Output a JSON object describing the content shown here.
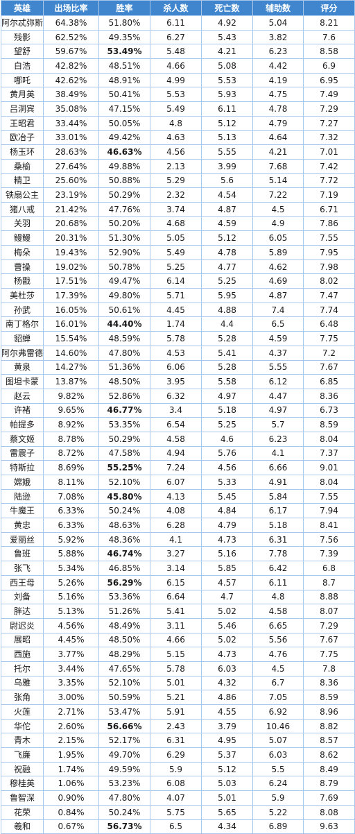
{
  "table": {
    "headers": [
      "英雄",
      "出场比率",
      "胜率",
      "杀人数",
      "死亡数",
      "辅助数",
      "评分"
    ],
    "highlight_colors": {
      "green": "#1fa84f",
      "red": "#e52226",
      "header_bg": "#3f86cf"
    },
    "rows": [
      {
        "cells": [
          "阿尔忒弥斯",
          "64.38%",
          "51.80%",
          "6.11",
          "4.92",
          "5.04",
          "8.21"
        ],
        "hl": ""
      },
      {
        "cells": [
          "残影",
          "62.52%",
          "49.35%",
          "6.27",
          "5.43",
          "3.82",
          "7.6"
        ],
        "hl": ""
      },
      {
        "cells": [
          "望舒",
          "59.67%",
          "53.49%",
          "5.48",
          "4.21",
          "6.23",
          "8.58"
        ],
        "hl": "red"
      },
      {
        "cells": [
          "白浩",
          "42.82%",
          "48.51%",
          "4.66",
          "5.08",
          "4.42",
          "6.9"
        ],
        "hl": ""
      },
      {
        "cells": [
          "哪吒",
          "42.62%",
          "48.91%",
          "4.99",
          "5.53",
          "4.19",
          "6.95"
        ],
        "hl": ""
      },
      {
        "cells": [
          "黄月英",
          "38.49%",
          "50.41%",
          "5.53",
          "5.93",
          "4.75",
          "7.49"
        ],
        "hl": ""
      },
      {
        "cells": [
          "吕洞宾",
          "35.08%",
          "47.15%",
          "5.49",
          "6.11",
          "4.78",
          "7.29"
        ],
        "hl": ""
      },
      {
        "cells": [
          "王昭君",
          "33.44%",
          "50.05%",
          "4.8",
          "5.12",
          "4.79",
          "7.27"
        ],
        "hl": ""
      },
      {
        "cells": [
          "欧冶子",
          "33.01%",
          "49.42%",
          "4.63",
          "5.13",
          "4.64",
          "7.32"
        ],
        "hl": ""
      },
      {
        "cells": [
          "杨玉环",
          "28.63%",
          "46.63%",
          "4.56",
          "5.55",
          "4.21",
          "7.01"
        ],
        "hl": "green"
      },
      {
        "cells": [
          "桑榆",
          "27.64%",
          "49.88%",
          "2.13",
          "3.99",
          "7.68",
          "7.42"
        ],
        "hl": ""
      },
      {
        "cells": [
          "精卫",
          "25.60%",
          "50.88%",
          "5.29",
          "5.6",
          "5.14",
          "7.72"
        ],
        "hl": ""
      },
      {
        "cells": [
          "铁扇公主",
          "23.19%",
          "50.29%",
          "2.32",
          "4.54",
          "7.22",
          "7.19"
        ],
        "hl": ""
      },
      {
        "cells": [
          "猪八戒",
          "21.42%",
          "47.76%",
          "3.74",
          "4.87",
          "4.5",
          "6.71"
        ],
        "hl": ""
      },
      {
        "cells": [
          "关羽",
          "20.68%",
          "50.20%",
          "4.68",
          "4.59",
          "4.9",
          "7.86"
        ],
        "hl": ""
      },
      {
        "cells": [
          "鳗鳗",
          "20.31%",
          "51.30%",
          "5.05",
          "5.12",
          "6.05",
          "7.55"
        ],
        "hl": ""
      },
      {
        "cells": [
          "梅朵",
          "19.43%",
          "52.90%",
          "5.49",
          "4.78",
          "5.89",
          "7.95"
        ],
        "hl": ""
      },
      {
        "cells": [
          "曹操",
          "19.02%",
          "50.78%",
          "5.25",
          "4.77",
          "4.62",
          "7.98"
        ],
        "hl": ""
      },
      {
        "cells": [
          "杨戬",
          "17.51%",
          "49.47%",
          "6.14",
          "5.25",
          "4.69",
          "8.02"
        ],
        "hl": ""
      },
      {
        "cells": [
          "美杜莎",
          "17.39%",
          "49.80%",
          "5.71",
          "5.95",
          "4.87",
          "7.47"
        ],
        "hl": ""
      },
      {
        "cells": [
          "孙武",
          "16.05%",
          "50.61%",
          "4.45",
          "4.88",
          "7.4",
          "7.74"
        ],
        "hl": ""
      },
      {
        "cells": [
          "南丁格尔",
          "16.01%",
          "44.40%",
          "1.74",
          "4.4",
          "6.5",
          "6.48"
        ],
        "hl": "green"
      },
      {
        "cells": [
          "貂蝉",
          "15.54%",
          "48.59%",
          "5.78",
          "5.28",
          "4.59",
          "7.75"
        ],
        "hl": ""
      },
      {
        "cells": [
          "阿尔弗雷德",
          "14.60%",
          "47.80%",
          "4.53",
          "5.41",
          "4.37",
          "7.2"
        ],
        "hl": ""
      },
      {
        "cells": [
          "黄泉",
          "14.27%",
          "51.36%",
          "6.06",
          "5.28",
          "5.55",
          "7.67"
        ],
        "hl": ""
      },
      {
        "cells": [
          "图坦卡蒙",
          "13.87%",
          "48.50%",
          "3.95",
          "5.58",
          "6.12",
          "6.85"
        ],
        "hl": ""
      },
      {
        "cells": [
          "赵云",
          "9.82%",
          "52.86%",
          "6.32",
          "4.97",
          "4.47",
          "8.36"
        ],
        "hl": ""
      },
      {
        "cells": [
          "许褚",
          "9.65%",
          "46.77%",
          "3.4",
          "5.18",
          "4.97",
          "6.73"
        ],
        "hl": "green"
      },
      {
        "cells": [
          "帕提多",
          "8.92%",
          "53.35%",
          "6.54",
          "5.25",
          "5.7",
          "8.59"
        ],
        "hl": ""
      },
      {
        "cells": [
          "蔡文姬",
          "8.78%",
          "50.29%",
          "4.58",
          "4.6",
          "6.23",
          "8.04"
        ],
        "hl": ""
      },
      {
        "cells": [
          "雷震子",
          "8.72%",
          "47.58%",
          "4.94",
          "5.76",
          "4.1",
          "7.37"
        ],
        "hl": ""
      },
      {
        "cells": [
          "特斯拉",
          "8.69%",
          "55.25%",
          "7.24",
          "4.56",
          "6.66",
          "9.01"
        ],
        "hl": "red"
      },
      {
        "cells": [
          "嫦娥",
          "8.11%",
          "52.10%",
          "6.07",
          "5.33",
          "4.91",
          "8.04"
        ],
        "hl": ""
      },
      {
        "cells": [
          "陆逊",
          "7.08%",
          "45.80%",
          "4.13",
          "5.45",
          "5.84",
          "7.55"
        ],
        "hl": "green"
      },
      {
        "cells": [
          "牛魔王",
          "6.33%",
          "50.24%",
          "4.08",
          "4.84",
          "6.17",
          "7.94"
        ],
        "hl": ""
      },
      {
        "cells": [
          "黄忠",
          "6.33%",
          "48.63%",
          "6.28",
          "4.79",
          "5.18",
          "8.41"
        ],
        "hl": ""
      },
      {
        "cells": [
          "爱丽丝",
          "5.92%",
          "48.36%",
          "4.1",
          "4.73",
          "6.31",
          "7.56"
        ],
        "hl": ""
      },
      {
        "cells": [
          "鲁班",
          "5.88%",
          "46.74%",
          "3.27",
          "5.16",
          "7.78",
          "7.39"
        ],
        "hl": "green"
      },
      {
        "cells": [
          "张飞",
          "5.34%",
          "46.85%",
          "3.14",
          "5.85",
          "6.42",
          "6.8"
        ],
        "hl": ""
      },
      {
        "cells": [
          "西王母",
          "5.26%",
          "56.29%",
          "6.15",
          "4.57",
          "6.11",
          "8.7"
        ],
        "hl": "red"
      },
      {
        "cells": [
          "刘备",
          "5.16%",
          "53.36%",
          "6.64",
          "4.7",
          "4.8",
          "8.88"
        ],
        "hl": ""
      },
      {
        "cells": [
          "胖达",
          "5.13%",
          "51.26%",
          "5.41",
          "5.02",
          "4.58",
          "8.07"
        ],
        "hl": ""
      },
      {
        "cells": [
          "尉迟炎",
          "4.56%",
          "48.49%",
          "3.11",
          "5.46",
          "6.65",
          "7.29"
        ],
        "hl": ""
      },
      {
        "cells": [
          "展昭",
          "4.45%",
          "48.50%",
          "4.66",
          "5.02",
          "5.56",
          "7.67"
        ],
        "hl": ""
      },
      {
        "cells": [
          "西施",
          "3.77%",
          "48.29%",
          "5.15",
          "4.73",
          "4.76",
          "7.75"
        ],
        "hl": ""
      },
      {
        "cells": [
          "托尔",
          "3.44%",
          "47.65%",
          "5.78",
          "6.03",
          "4.5",
          "7.8"
        ],
        "hl": ""
      },
      {
        "cells": [
          "乌雅",
          "3.35%",
          "52.10%",
          "5.01",
          "4.32",
          "6.7",
          "8.36"
        ],
        "hl": ""
      },
      {
        "cells": [
          "张角",
          "3.00%",
          "50.59%",
          "5.21",
          "4.86",
          "7.05",
          "8.59"
        ],
        "hl": ""
      },
      {
        "cells": [
          "火莲",
          "2.71%",
          "53.47%",
          "5.91",
          "4.55",
          "6.92",
          "8.96"
        ],
        "hl": ""
      },
      {
        "cells": [
          "华佗",
          "2.60%",
          "56.66%",
          "2.43",
          "3.79",
          "10.46",
          "8.82"
        ],
        "hl": "red"
      },
      {
        "cells": [
          "青木",
          "2.15%",
          "52.17%",
          "6.31",
          "4.95",
          "5.07",
          "8.57"
        ],
        "hl": ""
      },
      {
        "cells": [
          "飞廉",
          "1.95%",
          "49.70%",
          "6.29",
          "5.37",
          "6.03",
          "8.62"
        ],
        "hl": ""
      },
      {
        "cells": [
          "祝融",
          "1.74%",
          "49.59%",
          "5.9",
          "5.12",
          "5.5",
          "8.49"
        ],
        "hl": ""
      },
      {
        "cells": [
          "穆桂英",
          "1.06%",
          "53.23%",
          "6.08",
          "5.03",
          "6.24",
          "8.79"
        ],
        "hl": ""
      },
      {
        "cells": [
          "鲁智深",
          "0.90%",
          "47.80%",
          "4.07",
          "5.01",
          "5.9",
          "7.69"
        ],
        "hl": ""
      },
      {
        "cells": [
          "花荣",
          "0.84%",
          "50.24%",
          "5.75",
          "5.65",
          "5.22",
          "8.08"
        ],
        "hl": ""
      },
      {
        "cells": [
          "羲和",
          "0.67%",
          "56.73%",
          "6.5",
          "4.34",
          "6.89",
          "9.63"
        ],
        "hl": "red"
      }
    ]
  }
}
